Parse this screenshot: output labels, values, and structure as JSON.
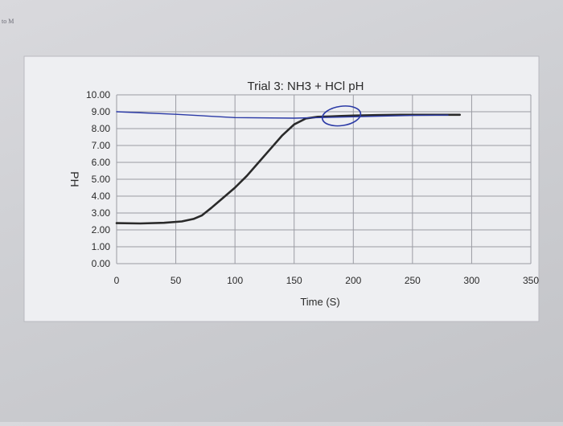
{
  "margin_note": "to M",
  "chart_data": {
    "type": "line",
    "title": "Trial 3: NH3 + HCl pH",
    "xlabel": "Time (S)",
    "ylabel": "PH",
    "xlim": [
      0,
      350
    ],
    "ylim": [
      0,
      10
    ],
    "x_ticks": [
      "0",
      "50",
      "100",
      "150",
      "200",
      "250",
      "300",
      "350"
    ],
    "y_ticks": [
      "0.00",
      "1.00",
      "2.00",
      "3.00",
      "4.00",
      "5.00",
      "6.00",
      "7.00",
      "8.00",
      "9.00",
      "10.00"
    ],
    "grid": true,
    "series": [
      {
        "color": "#2a2a2a",
        "x": [
          0,
          20,
          40,
          55,
          65,
          72,
          80,
          90,
          100,
          110,
          120,
          130,
          140,
          150,
          160,
          170,
          180,
          190,
          200,
          220,
          240,
          260,
          280,
          290
        ],
        "y": [
          2.4,
          2.38,
          2.42,
          2.5,
          2.65,
          2.85,
          3.3,
          3.9,
          4.5,
          5.2,
          6.0,
          6.8,
          7.6,
          8.25,
          8.6,
          8.7,
          8.72,
          8.75,
          8.77,
          8.8,
          8.82,
          8.82,
          8.82,
          8.82
        ]
      },
      {
        "color": "#2b3aa6",
        "x": [
          0,
          50,
          100,
          150,
          200,
          250,
          280
        ],
        "y": [
          9.0,
          8.85,
          8.65,
          8.62,
          8.7,
          8.78,
          8.8
        ]
      }
    ],
    "annotation": {
      "type": "circle",
      "x": 190,
      "y": 8.75,
      "color": "#2b3aa6"
    }
  }
}
